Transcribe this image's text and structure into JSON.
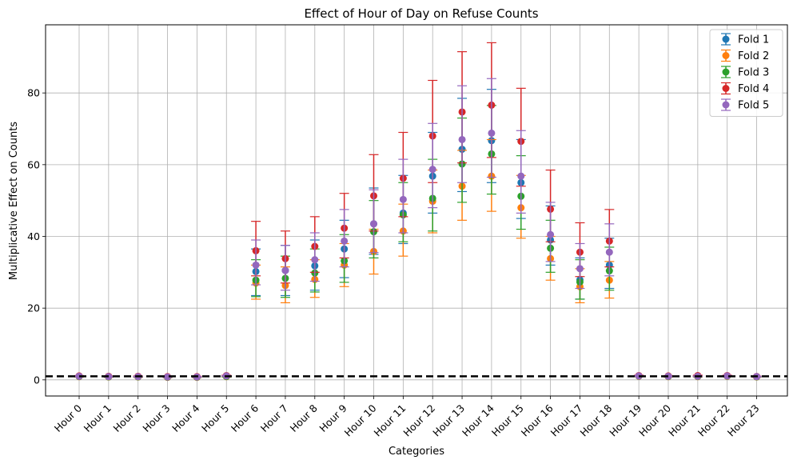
{
  "chart_data": {
    "type": "scatter",
    "title": "Effect of Hour of Day on Refuse Counts",
    "xlabel": "Categories",
    "ylabel": "Multiplicative Effect on Counts",
    "categories": [
      "Hour 0",
      "Hour 1",
      "Hour 2",
      "Hour 3",
      "Hour 4",
      "Hour 5",
      "Hour 6",
      "Hour 7",
      "Hour 8",
      "Hour 9",
      "Hour 10",
      "Hour 11",
      "Hour 12",
      "Hour 13",
      "Hour 14",
      "Hour 15",
      "Hour 16",
      "Hour 17",
      "Hour 18",
      "Hour 19",
      "Hour 20",
      "Hour 21",
      "Hour 22",
      "Hour 23"
    ],
    "ylim": [
      -4.5,
      99
    ],
    "yticks": [
      0,
      20,
      40,
      60,
      80
    ],
    "grid": true,
    "legend_position": "top-right",
    "reference_line": {
      "y": 1,
      "style": "dashed",
      "color": "#000000"
    },
    "series": [
      {
        "name": "Fold 1",
        "color": "#1f77b4",
        "values": [
          1.0,
          0.9,
          0.9,
          0.8,
          0.8,
          1.0,
          30.2,
          30.5,
          31.8,
          36.5,
          43.5,
          46.5,
          56.8,
          64.3,
          66.7,
          55.0,
          39.0,
          27.9,
          32.0,
          1.1,
          1.0,
          1.0,
          1.1,
          0.9
        ],
        "lower": [
          0.9,
          0.8,
          0.8,
          0.7,
          0.7,
          0.9,
          23.5,
          23.5,
          25.0,
          28.5,
          35.0,
          38.0,
          46.5,
          52.5,
          55.0,
          45.0,
          32.0,
          22.5,
          25.5,
          1.0,
          0.9,
          0.9,
          1.0,
          0.8
        ],
        "upper": [
          1.1,
          1.0,
          1.0,
          0.9,
          0.9,
          1.1,
          36.5,
          37.5,
          39.0,
          44.5,
          53.5,
          57.0,
          69.0,
          78.5,
          81.0,
          67.0,
          48.5,
          34.0,
          39.5,
          1.2,
          1.1,
          1.1,
          1.2,
          1.0
        ]
      },
      {
        "name": "Fold 2",
        "color": "#ff7f0e",
        "values": [
          0.9,
          0.8,
          0.8,
          0.7,
          0.7,
          0.9,
          27.0,
          26.3,
          28.0,
          32.0,
          35.8,
          41.5,
          49.8,
          54.0,
          56.8,
          48.0,
          33.8,
          26.0,
          27.8,
          1.0,
          0.9,
          0.9,
          1.0,
          0.8
        ],
        "lower": [
          0.8,
          0.7,
          0.7,
          0.6,
          0.6,
          0.8,
          22.5,
          21.5,
          23.0,
          26.0,
          29.5,
          34.5,
          41.0,
          44.5,
          47.0,
          39.5,
          27.8,
          21.5,
          22.8,
          0.9,
          0.8,
          0.8,
          0.9,
          0.7
        ],
        "upper": [
          1.0,
          0.9,
          0.9,
          0.8,
          0.8,
          1.0,
          32.0,
          31.5,
          33.5,
          38.0,
          42.0,
          49.0,
          58.5,
          64.0,
          67.0,
          57.0,
          40.0,
          31.0,
          33.0,
          1.1,
          1.0,
          1.0,
          1.1,
          0.9
        ]
      },
      {
        "name": "Fold 3",
        "color": "#2ca02c",
        "values": [
          0.95,
          0.85,
          0.85,
          0.75,
          0.75,
          0.95,
          27.8,
          28.3,
          29.8,
          33.2,
          41.3,
          46.0,
          50.6,
          60.2,
          63.0,
          51.2,
          36.7,
          27.3,
          30.4,
          1.05,
          0.95,
          0.95,
          1.05,
          0.85
        ],
        "lower": [
          0.85,
          0.75,
          0.75,
          0.65,
          0.65,
          0.85,
          23.2,
          23.0,
          24.5,
          27.2,
          34.0,
          38.5,
          41.5,
          49.5,
          51.8,
          42.0,
          30.0,
          22.5,
          25.0,
          0.95,
          0.85,
          0.85,
          0.95,
          0.75
        ],
        "upper": [
          1.05,
          0.95,
          0.95,
          0.85,
          0.85,
          1.05,
          33.5,
          34.5,
          36.5,
          40.5,
          50.0,
          55.0,
          61.5,
          73.0,
          76.5,
          62.5,
          44.5,
          33.5,
          37.0,
          1.15,
          1.05,
          1.05,
          1.15,
          0.95
        ]
      },
      {
        "name": "Fold 4",
        "color": "#d62728",
        "values": [
          1.1,
          1.0,
          1.0,
          0.9,
          0.9,
          1.2,
          36.0,
          33.8,
          37.2,
          42.3,
          51.3,
          56.2,
          68.0,
          74.7,
          76.6,
          66.5,
          47.6,
          35.6,
          38.7,
          1.2,
          1.1,
          1.2,
          1.2,
          0.95
        ],
        "lower": [
          1.0,
          0.9,
          0.9,
          0.8,
          0.8,
          1.1,
          29.0,
          27.0,
          30.0,
          34.0,
          41.5,
          45.5,
          55.0,
          60.5,
          62.0,
          54.0,
          38.5,
          28.8,
          31.5,
          1.1,
          1.0,
          1.1,
          1.1,
          0.85
        ],
        "upper": [
          1.2,
          1.1,
          1.1,
          1.0,
          1.0,
          1.3,
          44.2,
          41.5,
          45.5,
          52.0,
          62.8,
          69.0,
          83.5,
          91.5,
          94.0,
          81.3,
          58.5,
          43.8,
          47.5,
          1.3,
          1.2,
          1.3,
          1.3,
          1.05
        ]
      },
      {
        "name": "Fold 5",
        "color": "#9467bd",
        "values": [
          1.0,
          0.9,
          0.9,
          0.8,
          0.8,
          1.1,
          32.0,
          30.5,
          33.5,
          38.7,
          43.5,
          50.3,
          58.7,
          67.0,
          68.8,
          56.8,
          40.5,
          31.0,
          35.6,
          1.1,
          1.0,
          1.0,
          1.1,
          0.9
        ],
        "lower": [
          0.9,
          0.8,
          0.8,
          0.7,
          0.7,
          1.0,
          26.5,
          25.0,
          27.5,
          31.5,
          35.5,
          41.0,
          48.0,
          55.0,
          56.5,
          46.5,
          33.0,
          25.5,
          29.0,
          1.0,
          0.9,
          0.9,
          1.0,
          0.8
        ],
        "upper": [
          1.1,
          1.0,
          1.0,
          0.9,
          0.9,
          1.2,
          39.0,
          37.5,
          41.0,
          47.5,
          53.0,
          61.5,
          71.5,
          82.0,
          84.0,
          69.5,
          49.5,
          38.0,
          43.5,
          1.2,
          1.1,
          1.1,
          1.2,
          1.0
        ]
      }
    ]
  }
}
